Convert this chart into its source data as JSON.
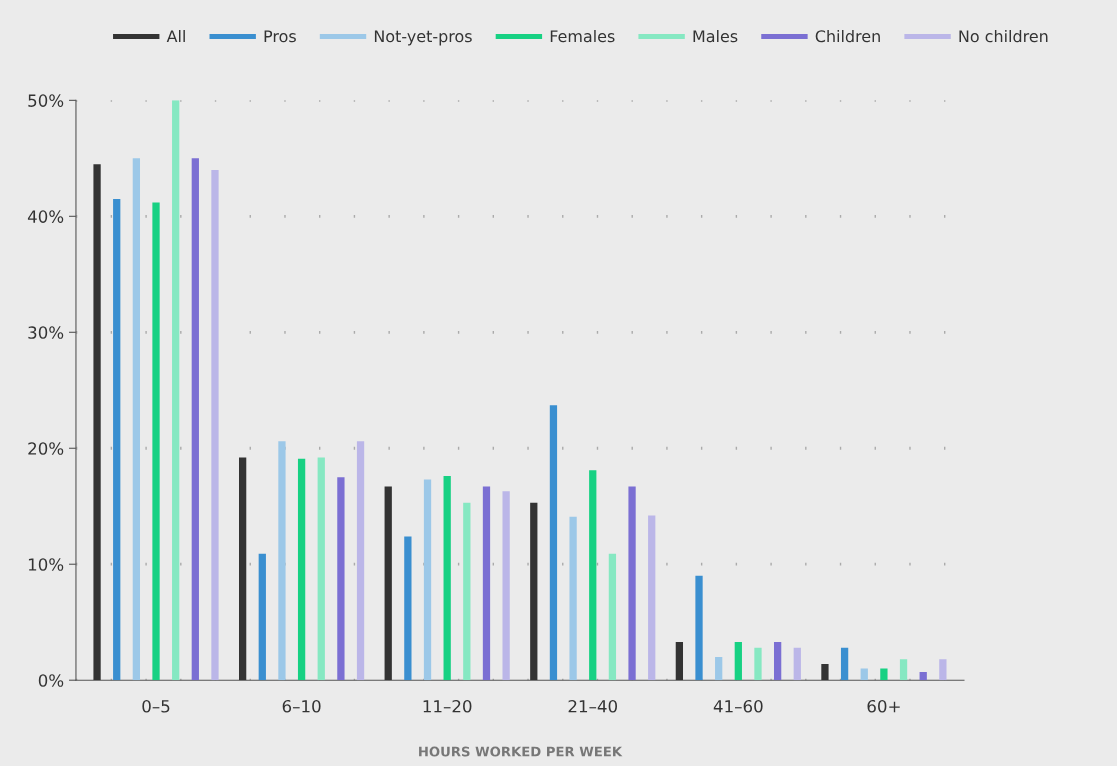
{
  "chart_data": {
    "type": "bar",
    "xlabel": "HOURS WORKED PER WEEK",
    "categories": [
      "0–5",
      "6–10",
      "11–20",
      "21–40",
      "41–60",
      "60+"
    ],
    "series": [
      {
        "name": "All",
        "color": "#333333",
        "values": [
          44.5,
          19.2,
          16.7,
          15.3,
          3.3,
          1.4
        ]
      },
      {
        "name": "Pros",
        "color": "#3a8fd0",
        "values": [
          41.5,
          10.9,
          12.4,
          23.7,
          9.0,
          2.8
        ]
      },
      {
        "name": "Not-yet-pros",
        "color": "#9cc8e8",
        "values": [
          45,
          20.6,
          17.3,
          14.1,
          2.0,
          1.0
        ]
      },
      {
        "name": "Females",
        "color": "#17d183",
        "values": [
          41.2,
          19.1,
          17.6,
          18.1,
          3.3,
          1.0
        ]
      },
      {
        "name": "Males",
        "color": "#86e8c2",
        "values": [
          50,
          19.2,
          15.3,
          10.9,
          2.8,
          1.8
        ]
      },
      {
        "name": "Children",
        "color": "#7b6fd3",
        "values": [
          45,
          17.5,
          16.7,
          16.7,
          3.3,
          0.7
        ]
      },
      {
        "name": "No children",
        "color": "#bbb6e8",
        "values": [
          44,
          20.6,
          16.3,
          14.2,
          2.8,
          1.8
        ]
      }
    ],
    "ylim": [
      0,
      50
    ],
    "yticks": [
      {
        "value": 0,
        "label": "0%"
      },
      {
        "value": 10,
        "label": "10%"
      },
      {
        "value": 20,
        "label": "20%"
      },
      {
        "value": 30,
        "label": "30%"
      },
      {
        "value": 40,
        "label": "40%"
      },
      {
        "value": 50,
        "label": "50%"
      }
    ],
    "grid": "y",
    "legend": "top"
  }
}
